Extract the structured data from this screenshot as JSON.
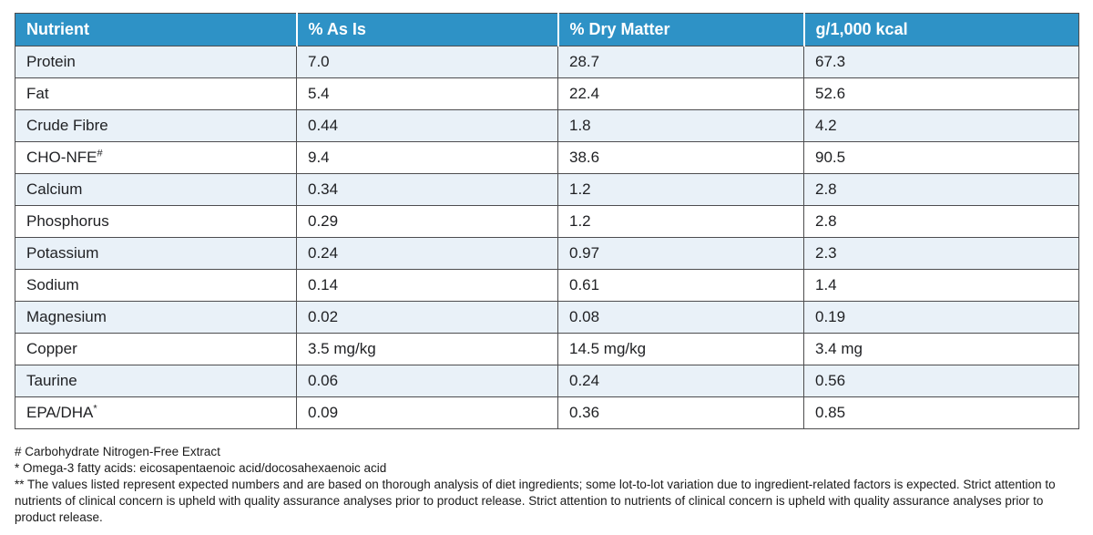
{
  "table": {
    "columns": [
      "Nutrient",
      "% As Is",
      "% Dry Matter",
      "g/1,000 kcal"
    ],
    "rows": [
      {
        "nutrient": "Protein",
        "sup": "",
        "as_is": "7.0",
        "dry_matter": "28.7",
        "per_1000_kcal": "67.3"
      },
      {
        "nutrient": "Fat",
        "sup": "",
        "as_is": "5.4",
        "dry_matter": "22.4",
        "per_1000_kcal": "52.6"
      },
      {
        "nutrient": "Crude Fibre",
        "sup": "",
        "as_is": "0.44",
        "dry_matter": "1.8",
        "per_1000_kcal": "4.2"
      },
      {
        "nutrient": "CHO-NFE",
        "sup": "#",
        "as_is": "9.4",
        "dry_matter": "38.6",
        "per_1000_kcal": "90.5"
      },
      {
        "nutrient": "Calcium",
        "sup": "",
        "as_is": "0.34",
        "dry_matter": "1.2",
        "per_1000_kcal": "2.8"
      },
      {
        "nutrient": "Phosphorus",
        "sup": "",
        "as_is": "0.29",
        "dry_matter": "1.2",
        "per_1000_kcal": "2.8"
      },
      {
        "nutrient": "Potassium",
        "sup": "",
        "as_is": "0.24",
        "dry_matter": "0.97",
        "per_1000_kcal": "2.3"
      },
      {
        "nutrient": "Sodium",
        "sup": "",
        "as_is": "0.14",
        "dry_matter": "0.61",
        "per_1000_kcal": "1.4"
      },
      {
        "nutrient": "Magnesium",
        "sup": "",
        "as_is": "0.02",
        "dry_matter": "0.08",
        "per_1000_kcal": "0.19"
      },
      {
        "nutrient": "Copper",
        "sup": "",
        "as_is": "3.5 mg/kg",
        "dry_matter": "14.5 mg/kg",
        "per_1000_kcal": "3.4 mg"
      },
      {
        "nutrient": "Taurine",
        "sup": "",
        "as_is": "0.06",
        "dry_matter": "0.24",
        "per_1000_kcal": "0.56"
      },
      {
        "nutrient": "EPA/DHA",
        "sup": "*",
        "as_is": "0.09",
        "dry_matter": "0.36",
        "per_1000_kcal": "0.85"
      }
    ]
  },
  "footnotes": [
    "# Carbohydrate Nitrogen-Free Extract",
    "* Omega-3 fatty acids: eicosapentaenoic acid/docosahexaenoic acid",
    "** The values listed represent expected numbers and are based on thorough analysis of diet ingredients; some lot-to-lot variation due to ingredient-related factors is expected. Strict attention to nutrients of clinical concern is upheld with quality assurance analyses prior to product release. Strict attention to nutrients of clinical concern is upheld with quality assurance analyses prior to product release."
  ],
  "colors": {
    "header_bg": "#2E92C6",
    "row_alt_bg": "#E9F1F8",
    "border": "#4D4D4F"
  }
}
